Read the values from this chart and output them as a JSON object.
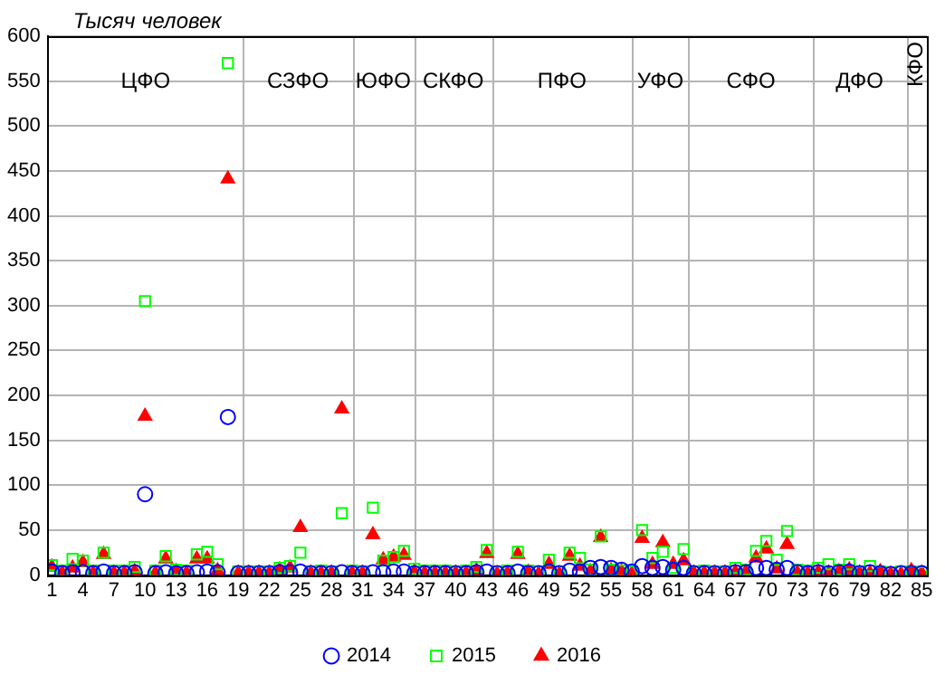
{
  "chart_data": {
    "type": "scatter",
    "ylabel": "Тысяч человек",
    "x": [
      1,
      2,
      3,
      4,
      5,
      6,
      7,
      8,
      9,
      10,
      11,
      12,
      13,
      14,
      15,
      16,
      17,
      18,
      19,
      20,
      21,
      22,
      23,
      24,
      25,
      26,
      27,
      28,
      29,
      30,
      31,
      32,
      33,
      34,
      35,
      36,
      37,
      38,
      39,
      40,
      41,
      42,
      43,
      44,
      45,
      46,
      47,
      48,
      49,
      50,
      51,
      52,
      53,
      54,
      55,
      56,
      57,
      58,
      59,
      60,
      61,
      62,
      63,
      64,
      65,
      66,
      67,
      68,
      69,
      70,
      71,
      72,
      73,
      74,
      75,
      76,
      77,
      78,
      79,
      80,
      81,
      82,
      83,
      84,
      85
    ],
    "series": [
      {
        "name": "2014",
        "color": "#0000ff",
        "marker": "circle",
        "values": [
          4,
          2,
          3,
          3,
          2,
          4,
          2,
          2,
          3,
          90,
          2,
          3,
          2,
          2,
          3,
          4,
          3,
          176,
          2,
          2,
          2,
          2,
          3,
          3,
          4,
          2,
          2,
          2,
          3,
          2,
          2,
          3,
          3,
          4,
          4,
          2,
          2,
          2,
          2,
          2,
          2,
          3,
          4,
          2,
          2,
          4,
          2,
          2,
          4,
          2,
          5,
          4,
          8,
          9,
          8,
          6,
          4,
          10,
          8,
          9,
          6,
          8,
          2,
          2,
          2,
          2,
          3,
          3,
          8,
          8,
          6,
          8,
          3,
          2,
          3,
          2,
          3,
          4,
          2,
          3,
          2,
          1,
          2,
          2,
          2
        ]
      },
      {
        "name": "2015",
        "color": "#00ff00",
        "marker": "square",
        "values": [
          11,
          5,
          18,
          16,
          5,
          25,
          5,
          5,
          9,
          305,
          5,
          21,
          6,
          5,
          23,
          26,
          12,
          570,
          4,
          4,
          4,
          4,
          8,
          10,
          25,
          4,
          5,
          4,
          69,
          5,
          4,
          75,
          16,
          20,
          27,
          7,
          5,
          5,
          5,
          4,
          5,
          9,
          28,
          4,
          5,
          26,
          5,
          4,
          17,
          4,
          25,
          19,
          6,
          43,
          6,
          5,
          4,
          50,
          19,
          26,
          8,
          29,
          4,
          5,
          4,
          4,
          8,
          6,
          27,
          38,
          17,
          49,
          6,
          5,
          8,
          12,
          6,
          12,
          4,
          10,
          4,
          3,
          4,
          4,
          3
        ]
      },
      {
        "name": "2016",
        "color": "#ff0000",
        "marker": "triangle",
        "values": [
          9,
          2,
          8,
          14,
          2,
          23,
          2,
          2,
          4,
          177,
          2,
          18,
          4,
          2,
          18,
          18,
          5,
          441,
          2,
          2,
          2,
          2,
          6,
          8,
          53,
          2,
          2,
          2,
          185,
          2,
          2,
          45,
          17,
          20,
          22,
          3,
          2,
          2,
          2,
          2,
          2,
          5,
          24,
          1,
          2,
          23,
          3,
          1,
          12,
          1,
          21,
          10,
          4,
          42,
          5,
          4,
          1,
          41,
          12,
          36,
          12,
          16,
          2,
          2,
          2,
          2,
          3,
          3,
          19,
          29,
          7,
          34,
          2,
          2,
          3,
          2,
          4,
          6,
          2,
          2,
          4,
          1,
          1,
          5,
          2
        ]
      }
    ],
    "xlim": [
      0.6,
      85.5
    ],
    "xticks": [
      1,
      4,
      7,
      10,
      13,
      16,
      19,
      22,
      25,
      28,
      31,
      34,
      37,
      40,
      43,
      46,
      49,
      52,
      55,
      58,
      61,
      64,
      67,
      70,
      73,
      76,
      79,
      82,
      85
    ],
    "ylim": [
      0,
      600
    ],
    "yticks": [
      0,
      50,
      100,
      150,
      200,
      250,
      300,
      350,
      400,
      450,
      500,
      550,
      600
    ],
    "ref_lines": [
      {
        "axis": "x",
        "value": 19.5,
        "color": "#b4b4b4"
      },
      {
        "axis": "x",
        "value": 30,
        "color": "#b4b4b4"
      },
      {
        "axis": "x",
        "value": 36,
        "color": "#b4b4b4"
      },
      {
        "axis": "x",
        "value": 43.5,
        "color": "#b4b4b4"
      },
      {
        "axis": "x",
        "value": 57,
        "color": "#b4b4b4"
      },
      {
        "axis": "x",
        "value": 62.5,
        "color": "#b4b4b4"
      },
      {
        "axis": "x",
        "value": 74.5,
        "color": "#b4b4b4"
      },
      {
        "axis": "x",
        "value": 83.5,
        "color": "#b4b4b4"
      }
    ],
    "annotations": [
      "ЦФО",
      "СЗФО",
      "ЮФО",
      "СКФО",
      "ПФО",
      "УФО",
      "СФО",
      "ДФО",
      "КФО"
    ],
    "grid": "y",
    "legend": "bottom"
  }
}
